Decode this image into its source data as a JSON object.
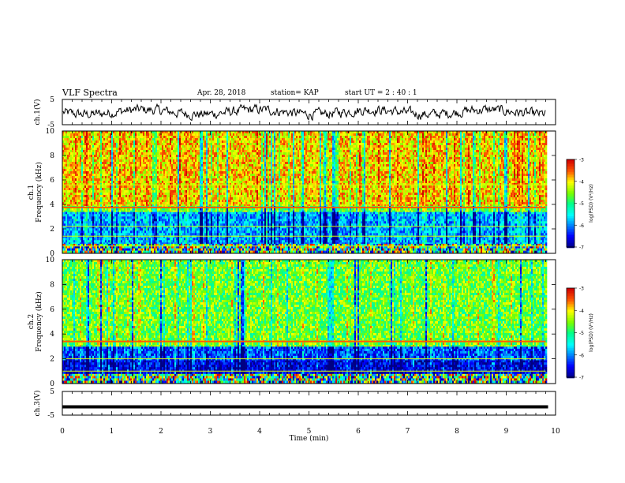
{
  "header": {
    "title": "VLF Spectra",
    "date": "Apr. 28, 2018",
    "station": "station= KAP",
    "start": "start  UT =   2 : 40 : 1"
  },
  "chart_data": [
    {
      "type": "line",
      "panel": "ch1-waveform",
      "ylabel": "ch.1(V)",
      "ylim": [
        -5,
        5
      ],
      "yticks": [
        "5",
        "-5"
      ],
      "series": [
        {
          "color": "#000000",
          "description_level": "noisy waveform around 0 V, amplitude about ±2 V"
        }
      ]
    },
    {
      "type": "heatmap",
      "panel": "ch1-spectrogram",
      "ylabel_top": "ch.1",
      "ylabel": "Frequency  (kHz)",
      "ylim": [
        0,
        10
      ],
      "yticks": [
        "0",
        "2",
        "4",
        "6",
        "8",
        "10"
      ],
      "colorbar": {
        "label": "log(PSD) (V²/Hz)",
        "range": [
          -7,
          -3
        ],
        "ticks": [
          "-3",
          "-4",
          "-5",
          "-6",
          "-7"
        ]
      },
      "bands": [
        {
          "from_khz": 0,
          "to_khz": 0.8,
          "level": "mixed"
        },
        {
          "from_khz": 0.8,
          "to_khz": 3.4,
          "level": -5.8
        },
        {
          "from_khz": 3.4,
          "to_khz": 3.9,
          "level": -4.6
        },
        {
          "from_khz": 3.9,
          "to_khz": 10,
          "level": -3.9
        }
      ],
      "lines_khz": [
        3.75,
        5.6,
        0.6,
        1.4,
        2.2
      ]
    },
    {
      "type": "heatmap",
      "panel": "ch2-spectrogram",
      "ylabel_top": "ch.2",
      "ylabel": "Frequency  (kHz)",
      "ylim": [
        0,
        10
      ],
      "yticks": [
        "0",
        "2",
        "4",
        "6",
        "8",
        "10"
      ],
      "colorbar": {
        "label": "log(PSD) (V²/Hz)",
        "range": [
          -7,
          -3
        ],
        "ticks": [
          "-3",
          "-4",
          "-5",
          "-6",
          "-7"
        ]
      },
      "bands": [
        {
          "from_khz": 0,
          "to_khz": 0.8,
          "level": "mixed"
        },
        {
          "from_khz": 0.8,
          "to_khz": 1.9,
          "level": -6.6
        },
        {
          "from_khz": 1.9,
          "to_khz": 3.0,
          "level": -6.2
        },
        {
          "from_khz": 3.0,
          "to_khz": 10,
          "level": -4.6
        }
      ],
      "lines_khz": [
        3.4,
        2.0,
        1.0
      ]
    },
    {
      "type": "line",
      "panel": "ch3-waveform",
      "ylabel": "ch.3(V)",
      "ylim": [
        -5,
        5
      ],
      "yticks": [
        "5",
        "-5"
      ],
      "series": [
        {
          "color": "#000000",
          "value": -1.5
        }
      ]
    }
  ],
  "x_axis": {
    "label": "Time  (min)",
    "xlim": [
      0,
      10
    ],
    "ticks": [
      "0",
      "1",
      "2",
      "3",
      "4",
      "5",
      "6",
      "7",
      "8",
      "9",
      "10"
    ],
    "data_end": 9.8
  }
}
